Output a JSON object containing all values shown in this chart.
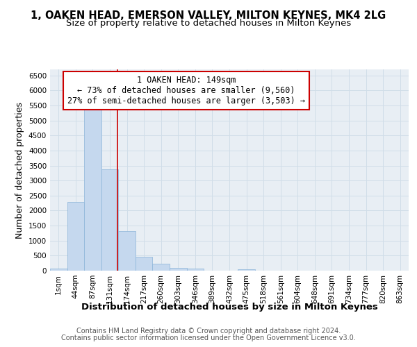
{
  "title": "1, OAKEN HEAD, EMERSON VALLEY, MILTON KEYNES, MK4 2LG",
  "subtitle": "Size of property relative to detached houses in Milton Keynes",
  "xlabel": "Distribution of detached houses by size in Milton Keynes",
  "ylabel": "Number of detached properties",
  "footer_line1": "Contains HM Land Registry data © Crown copyright and database right 2024.",
  "footer_line2": "Contains public sector information licensed under the Open Government Licence v3.0.",
  "bar_labels": [
    "1sqm",
    "44sqm",
    "87sqm",
    "131sqm",
    "174sqm",
    "217sqm",
    "260sqm",
    "303sqm",
    "346sqm",
    "389sqm",
    "432sqm",
    "475sqm",
    "518sqm",
    "561sqm",
    "604sqm",
    "648sqm",
    "691sqm",
    "734sqm",
    "777sqm",
    "820sqm",
    "863sqm"
  ],
  "bar_values": [
    70,
    2280,
    5400,
    3380,
    1310,
    470,
    220,
    100,
    60,
    0,
    0,
    55,
    0,
    0,
    0,
    0,
    0,
    0,
    0,
    0,
    0
  ],
  "bar_color": "#c5d8ee",
  "bar_edgecolor": "#8ab4d8",
  "grid_color": "#d0dde8",
  "bg_color": "#e8eef4",
  "annotation_box_edgecolor": "#cc0000",
  "vline_color": "#cc0000",
  "annotation_text_line1": "1 OAKEN HEAD: 149sqm",
  "annotation_text_line2": "← 73% of detached houses are smaller (9,560)",
  "annotation_text_line3": "27% of semi-detached houses are larger (3,503) →",
  "vline_x": 3.43,
  "ylim": [
    0,
    6700
  ],
  "yticks": [
    0,
    500,
    1000,
    1500,
    2000,
    2500,
    3000,
    3500,
    4000,
    4500,
    5000,
    5500,
    6000,
    6500
  ],
  "title_fontsize": 10.5,
  "subtitle_fontsize": 9.5,
  "axis_label_fontsize": 9,
  "tick_fontsize": 7.5,
  "annotation_fontsize": 8.5,
  "footer_fontsize": 7
}
